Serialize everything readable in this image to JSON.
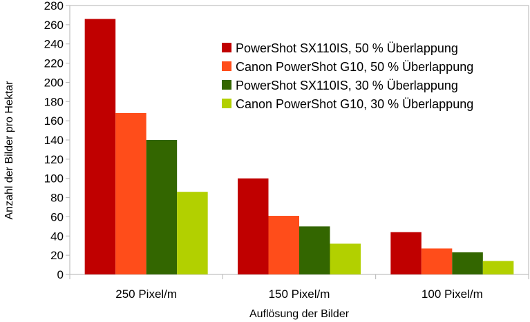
{
  "chart_data": {
    "type": "bar",
    "categories": [
      "250 Pixel/m",
      "150 Pixel/m",
      "100 Pixel/m"
    ],
    "series": [
      {
        "name": "PowerShot SX110IS, 50 % Überlappung",
        "values": [
          266,
          100,
          44
        ],
        "color": "#c00000"
      },
      {
        "name": "Canon PowerShot G10, 50 % Überlappung",
        "values": [
          168,
          61,
          27
        ],
        "color": "#ff4d1a"
      },
      {
        "name": "PowerShot SX110IS, 30 % Überlappung",
        "values": [
          140,
          50,
          23
        ],
        "color": "#336600"
      },
      {
        "name": "Canon PowerShot G10, 30 % Überlappung",
        "values": [
          86,
          32,
          14
        ],
        "color": "#b2d000"
      }
    ],
    "xlabel": "Auflösung der Bilder",
    "ylabel": "Anzahl der Bilder pro Hektar",
    "ylim": [
      0,
      280
    ],
    "yticks": [
      0,
      20,
      40,
      60,
      80,
      100,
      120,
      140,
      160,
      180,
      200,
      220,
      240,
      260,
      280
    ],
    "grid": false,
    "legend_position": "top-right"
  }
}
